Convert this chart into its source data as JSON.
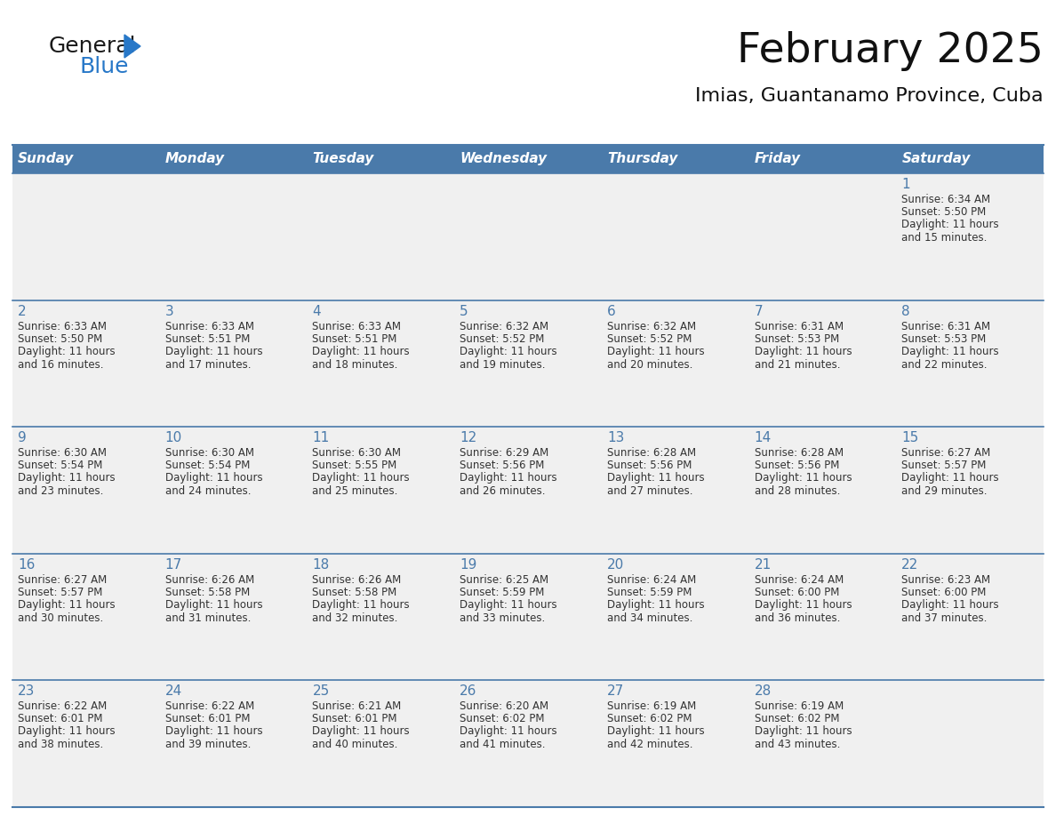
{
  "title": "February 2025",
  "subtitle": "Imias, Guantanamo Province, Cuba",
  "header_bg_color": "#4a7aaa",
  "header_text_color": "#FFFFFF",
  "cell_bg_color": "#F0F0F0",
  "day_number_color": "#4a7aaa",
  "text_color": "#333333",
  "border_color": "#4a7aaa",
  "days_of_week": [
    "Sunday",
    "Monday",
    "Tuesday",
    "Wednesday",
    "Thursday",
    "Friday",
    "Saturday"
  ],
  "weeks": [
    [
      {
        "day": "",
        "sunrise": "",
        "sunset": "",
        "daylight": ""
      },
      {
        "day": "",
        "sunrise": "",
        "sunset": "",
        "daylight": ""
      },
      {
        "day": "",
        "sunrise": "",
        "sunset": "",
        "daylight": ""
      },
      {
        "day": "",
        "sunrise": "",
        "sunset": "",
        "daylight": ""
      },
      {
        "day": "",
        "sunrise": "",
        "sunset": "",
        "daylight": ""
      },
      {
        "day": "",
        "sunrise": "",
        "sunset": "",
        "daylight": ""
      },
      {
        "day": "1",
        "sunrise": "6:34 AM",
        "sunset": "5:50 PM",
        "daylight": "11 hours\nand 15 minutes."
      }
    ],
    [
      {
        "day": "2",
        "sunrise": "6:33 AM",
        "sunset": "5:50 PM",
        "daylight": "11 hours\nand 16 minutes."
      },
      {
        "day": "3",
        "sunrise": "6:33 AM",
        "sunset": "5:51 PM",
        "daylight": "11 hours\nand 17 minutes."
      },
      {
        "day": "4",
        "sunrise": "6:33 AM",
        "sunset": "5:51 PM",
        "daylight": "11 hours\nand 18 minutes."
      },
      {
        "day": "5",
        "sunrise": "6:32 AM",
        "sunset": "5:52 PM",
        "daylight": "11 hours\nand 19 minutes."
      },
      {
        "day": "6",
        "sunrise": "6:32 AM",
        "sunset": "5:52 PM",
        "daylight": "11 hours\nand 20 minutes."
      },
      {
        "day": "7",
        "sunrise": "6:31 AM",
        "sunset": "5:53 PM",
        "daylight": "11 hours\nand 21 minutes."
      },
      {
        "day": "8",
        "sunrise": "6:31 AM",
        "sunset": "5:53 PM",
        "daylight": "11 hours\nand 22 minutes."
      }
    ],
    [
      {
        "day": "9",
        "sunrise": "6:30 AM",
        "sunset": "5:54 PM",
        "daylight": "11 hours\nand 23 minutes."
      },
      {
        "day": "10",
        "sunrise": "6:30 AM",
        "sunset": "5:54 PM",
        "daylight": "11 hours\nand 24 minutes."
      },
      {
        "day": "11",
        "sunrise": "6:30 AM",
        "sunset": "5:55 PM",
        "daylight": "11 hours\nand 25 minutes."
      },
      {
        "day": "12",
        "sunrise": "6:29 AM",
        "sunset": "5:56 PM",
        "daylight": "11 hours\nand 26 minutes."
      },
      {
        "day": "13",
        "sunrise": "6:28 AM",
        "sunset": "5:56 PM",
        "daylight": "11 hours\nand 27 minutes."
      },
      {
        "day": "14",
        "sunrise": "6:28 AM",
        "sunset": "5:56 PM",
        "daylight": "11 hours\nand 28 minutes."
      },
      {
        "day": "15",
        "sunrise": "6:27 AM",
        "sunset": "5:57 PM",
        "daylight": "11 hours\nand 29 minutes."
      }
    ],
    [
      {
        "day": "16",
        "sunrise": "6:27 AM",
        "sunset": "5:57 PM",
        "daylight": "11 hours\nand 30 minutes."
      },
      {
        "day": "17",
        "sunrise": "6:26 AM",
        "sunset": "5:58 PM",
        "daylight": "11 hours\nand 31 minutes."
      },
      {
        "day": "18",
        "sunrise": "6:26 AM",
        "sunset": "5:58 PM",
        "daylight": "11 hours\nand 32 minutes."
      },
      {
        "day": "19",
        "sunrise": "6:25 AM",
        "sunset": "5:59 PM",
        "daylight": "11 hours\nand 33 minutes."
      },
      {
        "day": "20",
        "sunrise": "6:24 AM",
        "sunset": "5:59 PM",
        "daylight": "11 hours\nand 34 minutes."
      },
      {
        "day": "21",
        "sunrise": "6:24 AM",
        "sunset": "6:00 PM",
        "daylight": "11 hours\nand 36 minutes."
      },
      {
        "day": "22",
        "sunrise": "6:23 AM",
        "sunset": "6:00 PM",
        "daylight": "11 hours\nand 37 minutes."
      }
    ],
    [
      {
        "day": "23",
        "sunrise": "6:22 AM",
        "sunset": "6:01 PM",
        "daylight": "11 hours\nand 38 minutes."
      },
      {
        "day": "24",
        "sunrise": "6:22 AM",
        "sunset": "6:01 PM",
        "daylight": "11 hours\nand 39 minutes."
      },
      {
        "day": "25",
        "sunrise": "6:21 AM",
        "sunset": "6:01 PM",
        "daylight": "11 hours\nand 40 minutes."
      },
      {
        "day": "26",
        "sunrise": "6:20 AM",
        "sunset": "6:02 PM",
        "daylight": "11 hours\nand 41 minutes."
      },
      {
        "day": "27",
        "sunrise": "6:19 AM",
        "sunset": "6:02 PM",
        "daylight": "11 hours\nand 42 minutes."
      },
      {
        "day": "28",
        "sunrise": "6:19 AM",
        "sunset": "6:02 PM",
        "daylight": "11 hours\nand 43 minutes."
      },
      {
        "day": "",
        "sunrise": "",
        "sunset": "",
        "daylight": ""
      }
    ]
  ],
  "logo_general_color": "#1a1a1a",
  "logo_blue_color": "#2878c8",
  "logo_triangle_color": "#2878c8",
  "title_fontsize": 34,
  "subtitle_fontsize": 16,
  "header_fontsize": 11,
  "day_num_fontsize": 11,
  "cell_text_fontsize": 8.5
}
